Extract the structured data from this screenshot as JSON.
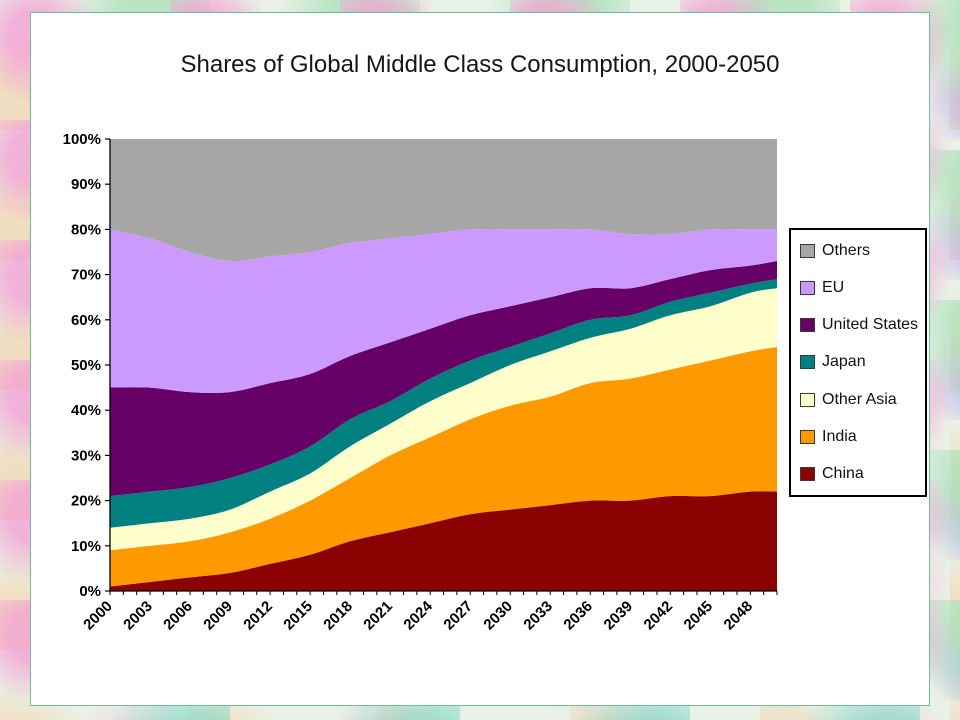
{
  "chart_data": {
    "type": "area",
    "stacked": true,
    "percent": true,
    "title": "Shares of Global Middle Class Consumption, 2000-2050",
    "xlabel": "",
    "ylabel": "",
    "ylim": [
      0,
      100
    ],
    "grid": false,
    "legend_position": "right",
    "y_ticks": [
      "0%",
      "10%",
      "20%",
      "30%",
      "40%",
      "50%",
      "60%",
      "70%",
      "80%",
      "90%",
      "100%"
    ],
    "x_tick_labels": [
      "2000",
      "2003",
      "2006",
      "2009",
      "2012",
      "2015",
      "2018",
      "2021",
      "2024",
      "2027",
      "2030",
      "2033",
      "2036",
      "2039",
      "2042",
      "2045",
      "2048"
    ],
    "x_tick_step": 3,
    "years": [
      2000,
      2003,
      2006,
      2009,
      2012,
      2015,
      2018,
      2021,
      2024,
      2027,
      2030,
      2033,
      2036,
      2039,
      2042,
      2045,
      2048,
      2050
    ],
    "series": [
      {
        "name": "Others",
        "color": "#a6a6a6",
        "values": [
          20,
          22,
          25,
          27,
          26,
          25,
          23,
          22,
          21,
          20,
          20,
          20,
          20,
          21,
          21,
          20,
          20,
          20
        ]
      },
      {
        "name": "EU",
        "color": "#cc99ff",
        "values": [
          35,
          33,
          31,
          29,
          28,
          27,
          25,
          23,
          21,
          19,
          17,
          15,
          13,
          12,
          10,
          9,
          8,
          7
        ]
      },
      {
        "name": "United States",
        "color": "#660066",
        "values": [
          24,
          23,
          21,
          19,
          18,
          16,
          14,
          13,
          11,
          10,
          9,
          8,
          7,
          6,
          5,
          5,
          4,
          4
        ]
      },
      {
        "name": "Japan",
        "color": "#008080",
        "values": [
          7,
          7,
          7,
          7,
          6,
          6,
          6,
          5,
          5,
          5,
          4,
          4,
          4,
          3,
          3,
          3,
          2,
          2
        ]
      },
      {
        "name": "Other Asia",
        "color": "#ffffcc",
        "values": [
          5,
          5,
          5,
          5,
          6,
          6,
          7,
          7,
          8,
          8,
          9,
          10,
          10,
          11,
          12,
          12,
          13,
          13
        ]
      },
      {
        "name": "India",
        "color": "#ff9900",
        "values": [
          8,
          8,
          8,
          9,
          10,
          12,
          14,
          17,
          19,
          21,
          23,
          24,
          26,
          27,
          28,
          30,
          31,
          32
        ]
      },
      {
        "name": "China",
        "color": "#8b0000",
        "values": [
          1,
          2,
          3,
          4,
          6,
          8,
          11,
          13,
          15,
          17,
          18,
          19,
          20,
          20,
          21,
          21,
          22,
          22
        ]
      }
    ]
  }
}
